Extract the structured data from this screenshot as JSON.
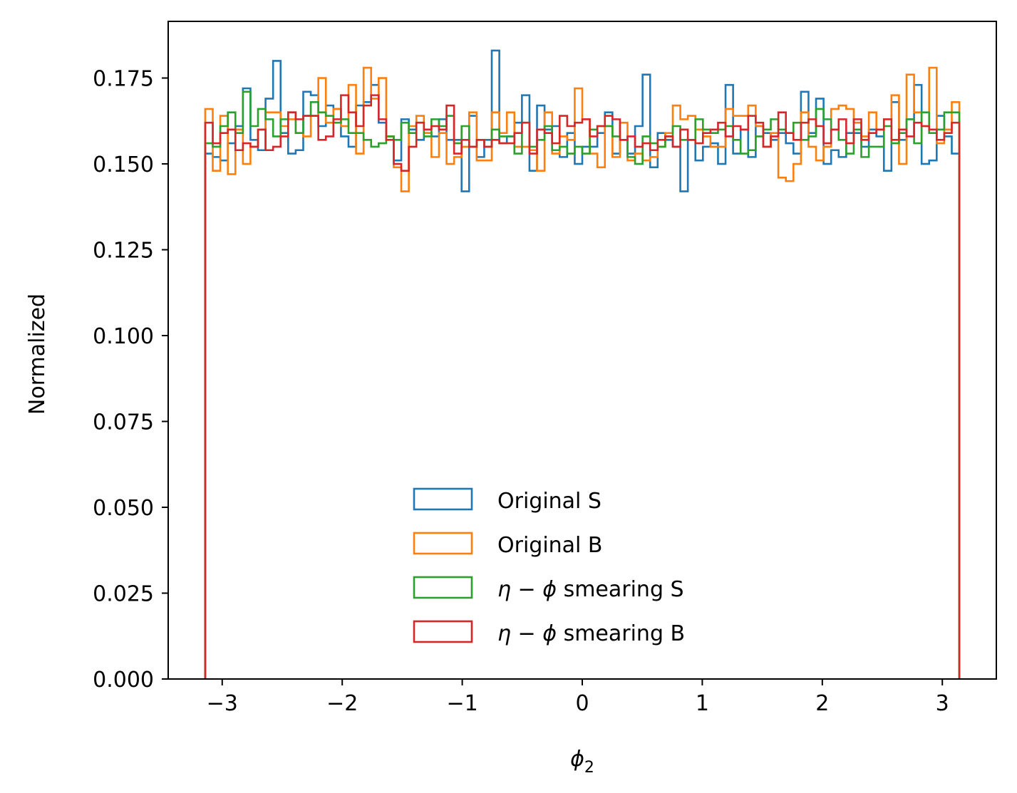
{
  "chart_data": {
    "type": "histogram-step",
    "xlabel": "ϕ",
    "xlabel_subscript": "2",
    "ylabel": "Normalized",
    "xlim": [
      -3.45,
      3.45
    ],
    "ylim": [
      0,
      0.1915
    ],
    "xticks": [
      -3,
      -2,
      -1,
      0,
      1,
      2,
      3
    ],
    "xtick_labels": [
      "−3",
      "−2",
      "−1",
      "0",
      "1",
      "2",
      "3"
    ],
    "yticks": [
      0,
      0.025,
      0.05,
      0.075,
      0.1,
      0.125,
      0.15,
      0.175
    ],
    "ytick_labels": [
      "0.000",
      "0.025",
      "0.050",
      "0.075",
      "0.100",
      "0.125",
      "0.150",
      "0.175"
    ],
    "bin_range": [
      -3.1416,
      3.1416
    ],
    "n_bins": 100,
    "grid": false,
    "legend_position": "lower center",
    "series": [
      {
        "name": "Original S",
        "legend_parts": [
          "Original S"
        ],
        "color": "#1f77b4",
        "values": [
          0.153,
          0.152,
          0.151,
          0.156,
          0.161,
          0.172,
          0.157,
          0.154,
          0.169,
          0.18,
          0.159,
          0.153,
          0.154,
          0.171,
          0.17,
          0.161,
          0.167,
          0.166,
          0.158,
          0.155,
          0.167,
          0.168,
          0.173,
          0.162,
          0.158,
          0.151,
          0.163,
          0.16,
          0.157,
          0.159,
          0.158,
          0.163,
          0.157,
          0.157,
          0.142,
          0.164,
          0.152,
          0.157,
          0.183,
          0.156,
          0.158,
          0.162,
          0.17,
          0.148,
          0.167,
          0.16,
          0.161,
          0.152,
          0.159,
          0.15,
          0.155,
          0.155,
          0.159,
          0.165,
          0.153,
          0.157,
          0.153,
          0.161,
          0.176,
          0.149,
          0.159,
          0.157,
          0.155,
          0.142,
          0.157,
          0.151,
          0.155,
          0.156,
          0.15,
          0.173,
          0.153,
          0.16,
          0.152,
          0.161,
          0.159,
          0.157,
          0.159,
          0.156,
          0.153,
          0.171,
          0.159,
          0.169,
          0.15,
          0.154,
          0.152,
          0.159,
          0.159,
          0.155,
          0.16,
          0.158,
          0.148,
          0.168,
          0.157,
          0.163,
          0.173,
          0.15,
          0.151,
          0.164,
          0.158,
          0.153
        ]
      },
      {
        "name": "Original B",
        "legend_parts": [
          "Original B"
        ],
        "color": "#ff7f0e",
        "values": [
          0.166,
          0.148,
          0.164,
          0.147,
          0.16,
          0.15,
          0.155,
          0.16,
          0.165,
          0.165,
          0.161,
          0.163,
          0.159,
          0.158,
          0.164,
          0.175,
          0.162,
          0.166,
          0.161,
          0.173,
          0.153,
          0.178,
          0.169,
          0.175,
          0.158,
          0.149,
          0.142,
          0.161,
          0.164,
          0.159,
          0.152,
          0.159,
          0.15,
          0.152,
          0.155,
          0.165,
          0.151,
          0.151,
          0.165,
          0.159,
          0.165,
          0.155,
          0.155,
          0.154,
          0.148,
          0.165,
          0.153,
          0.158,
          0.157,
          0.172,
          0.163,
          0.153,
          0.149,
          0.161,
          0.152,
          0.162,
          0.151,
          0.153,
          0.151,
          0.152,
          0.155,
          0.159,
          0.167,
          0.163,
          0.164,
          0.16,
          0.158,
          0.155,
          0.155,
          0.166,
          0.164,
          0.164,
          0.167,
          0.161,
          0.155,
          0.159,
          0.146,
          0.145,
          0.15,
          0.165,
          0.155,
          0.151,
          0.155,
          0.166,
          0.167,
          0.166,
          0.162,
          0.158,
          0.165,
          0.16,
          0.163,
          0.17,
          0.15,
          0.176,
          0.165,
          0.161,
          0.178,
          0.156,
          0.16,
          0.168
        ]
      },
      {
        "name": "η − ϕ smearing S",
        "legend_parts": [
          "η",
          " − ",
          "ϕ",
          " smearing S"
        ],
        "color": "#2ca02c",
        "values": [
          0.156,
          0.155,
          0.161,
          0.165,
          0.159,
          0.171,
          0.161,
          0.166,
          0.163,
          0.158,
          0.163,
          0.165,
          0.159,
          0.164,
          0.168,
          0.165,
          0.164,
          0.162,
          0.163,
          0.159,
          0.159,
          0.157,
          0.155,
          0.156,
          0.158,
          0.157,
          0.162,
          0.159,
          0.162,
          0.158,
          0.163,
          0.161,
          0.164,
          0.156,
          0.161,
          0.155,
          0.157,
          0.155,
          0.16,
          0.158,
          0.158,
          0.153,
          0.162,
          0.155,
          0.157,
          0.161,
          0.154,
          0.155,
          0.153,
          0.155,
          0.153,
          0.16,
          0.161,
          0.161,
          0.158,
          0.157,
          0.152,
          0.15,
          0.158,
          0.156,
          0.155,
          0.158,
          0.161,
          0.157,
          0.157,
          0.163,
          0.16,
          0.159,
          0.16,
          0.161,
          0.157,
          0.153,
          0.154,
          0.158,
          0.16,
          0.163,
          0.16,
          0.159,
          0.162,
          0.157,
          0.158,
          0.166,
          0.163,
          0.16,
          0.157,
          0.153,
          0.16,
          0.152,
          0.155,
          0.155,
          0.161,
          0.156,
          0.159,
          0.163,
          0.156,
          0.165,
          0.159,
          0.16,
          0.165,
          0.165
        ]
      },
      {
        "name": "η − ϕ smearing B",
        "legend_parts": [
          "η",
          " − ",
          "ϕ",
          " smearing B"
        ],
        "color": "#d62728",
        "values": [
          0.162,
          0.156,
          0.159,
          0.16,
          0.154,
          0.156,
          0.155,
          0.16,
          0.154,
          0.155,
          0.158,
          0.165,
          0.163,
          0.164,
          0.164,
          0.157,
          0.158,
          0.163,
          0.17,
          0.165,
          0.161,
          0.167,
          0.17,
          0.163,
          0.157,
          0.15,
          0.148,
          0.155,
          0.162,
          0.16,
          0.161,
          0.16,
          0.167,
          0.153,
          0.157,
          0.155,
          0.157,
          0.155,
          0.157,
          0.156,
          0.156,
          0.159,
          0.162,
          0.153,
          0.16,
          0.159,
          0.156,
          0.164,
          0.161,
          0.162,
          0.163,
          0.158,
          0.161,
          0.164,
          0.163,
          0.157,
          0.158,
          0.155,
          0.156,
          0.154,
          0.157,
          0.158,
          0.155,
          0.16,
          0.157,
          0.156,
          0.159,
          0.16,
          0.162,
          0.158,
          0.161,
          0.16,
          0.164,
          0.162,
          0.155,
          0.158,
          0.165,
          0.159,
          0.157,
          0.162,
          0.163,
          0.161,
          0.156,
          0.16,
          0.163,
          0.156,
          0.163,
          0.157,
          0.159,
          0.16,
          0.163,
          0.157,
          0.16,
          0.158,
          0.162,
          0.161,
          0.16,
          0.157,
          0.159,
          0.162
        ]
      }
    ]
  }
}
